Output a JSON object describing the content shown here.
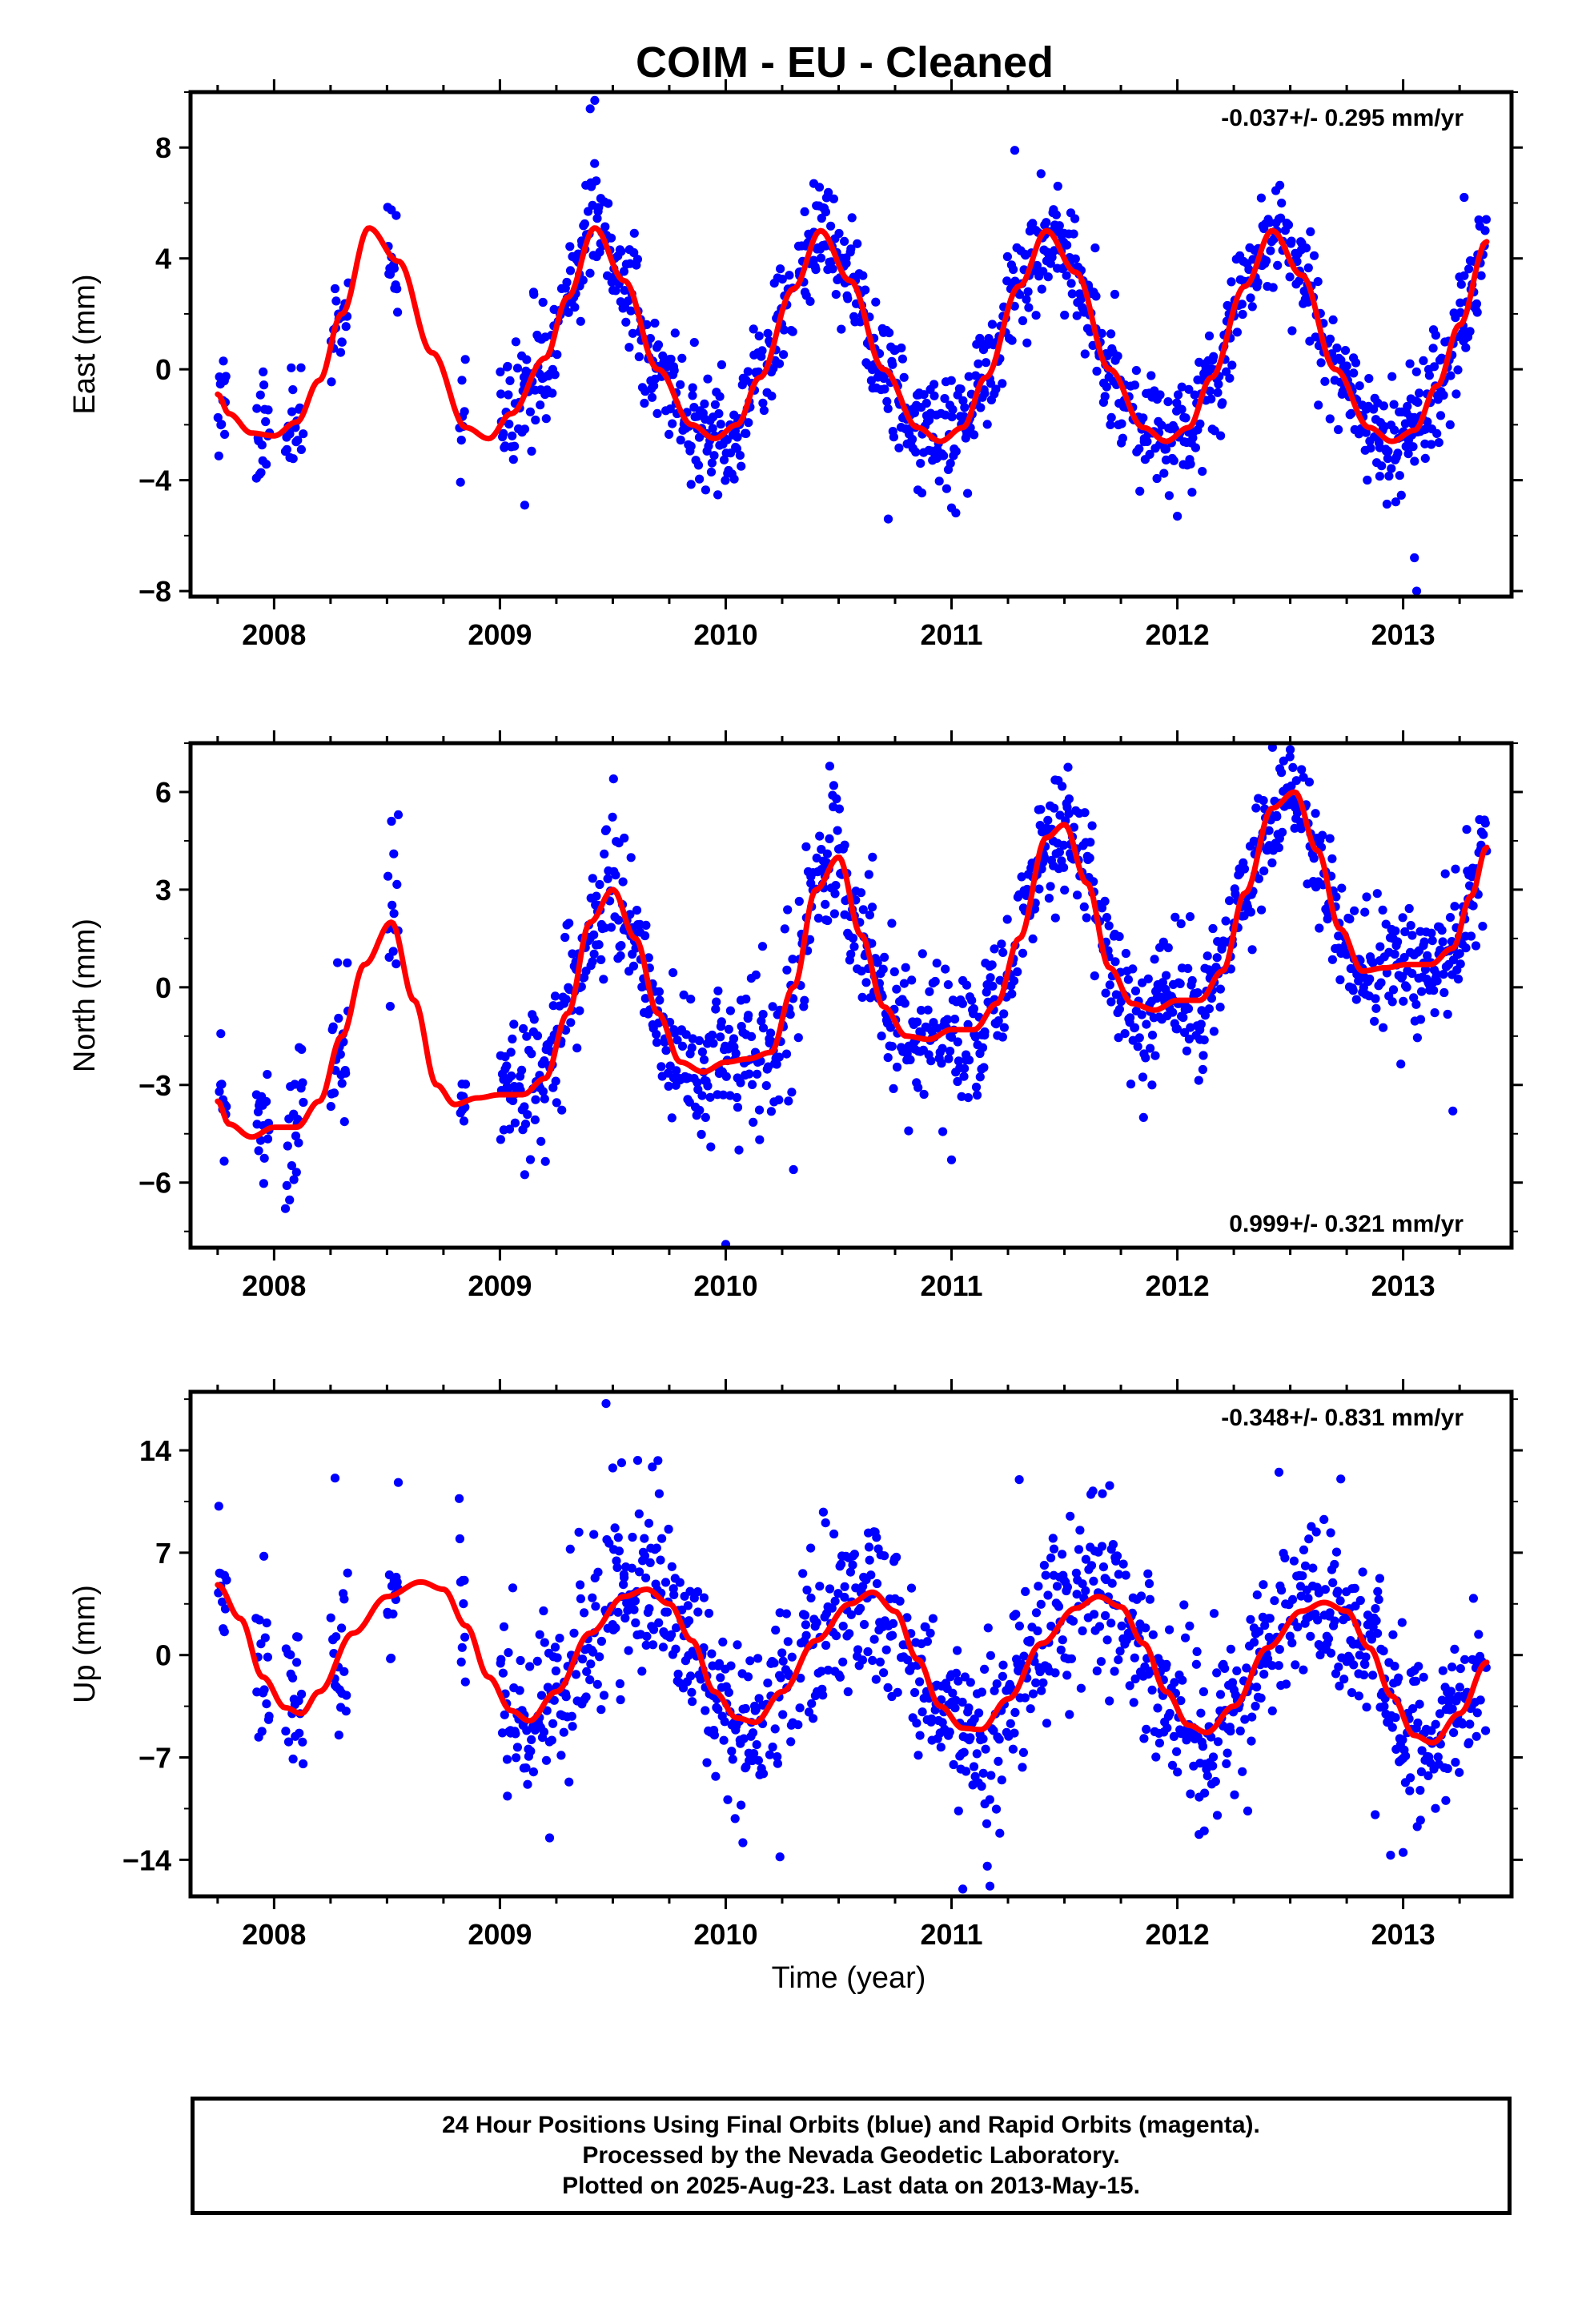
{
  "title": "COIM  - EU - Cleaned",
  "xlabel": "Time (year)",
  "footer": {
    "line1": "24 Hour Positions Using Final Orbits (blue) and Rapid Orbits (magenta).",
    "line2": "Processed by the Nevada Geodetic Laboratory.",
    "line3": "Plotted on 2025-Aug-23. Last data on 2013-May-15."
  },
  "colors": {
    "points": "#0000ff",
    "model": "#ff0000",
    "axes": "#000000"
  },
  "chart_data": [
    {
      "type": "scatter",
      "name": "east",
      "ylabel": "East (mm)",
      "rate": "-0.037+/- 0.295 mm/yr",
      "rate_position": "top-right",
      "xlim": [
        2007.63,
        2013.48
      ],
      "ylim": [
        -8.2,
        10.0
      ],
      "xticks": [
        2008,
        2009,
        2010,
        2011,
        2012,
        2013
      ],
      "xtick_labels": [
        "2008",
        "2009",
        "2010",
        "2011",
        "2012",
        "2013"
      ],
      "yticks": [
        -8,
        -4,
        0,
        4,
        8
      ],
      "ytick_labels": [
        "−8",
        "−4",
        "0",
        "4",
        "8"
      ],
      "grid": false,
      "model": {
        "knots": [
          [
            2007.75,
            -0.9
          ],
          [
            2007.8,
            -1.6
          ],
          [
            2007.9,
            -2.3
          ],
          [
            2008.0,
            -2.4
          ],
          [
            2008.1,
            -1.9
          ],
          [
            2008.2,
            -0.4
          ],
          [
            2008.3,
            2.0
          ],
          [
            2008.42,
            5.1
          ],
          [
            2008.55,
            3.9
          ],
          [
            2008.7,
            0.6
          ],
          [
            2008.85,
            -2.1
          ],
          [
            2008.95,
            -2.5
          ],
          [
            2009.05,
            -1.6
          ],
          [
            2009.2,
            0.4
          ],
          [
            2009.3,
            2.6
          ],
          [
            2009.42,
            5.1
          ],
          [
            2009.55,
            3.2
          ],
          [
            2009.7,
            0.0
          ],
          [
            2009.85,
            -2.0
          ],
          [
            2009.95,
            -2.5
          ],
          [
            2010.05,
            -2.0
          ],
          [
            2010.15,
            -0.3
          ],
          [
            2010.3,
            2.9
          ],
          [
            2010.42,
            5.0
          ],
          [
            2010.55,
            3.2
          ],
          [
            2010.7,
            0.0
          ],
          [
            2010.85,
            -2.1
          ],
          [
            2010.95,
            -2.6
          ],
          [
            2011.05,
            -2.1
          ],
          [
            2011.15,
            -0.3
          ],
          [
            2011.3,
            3.0
          ],
          [
            2011.42,
            5.0
          ],
          [
            2011.55,
            3.5
          ],
          [
            2011.7,
            0.0
          ],
          [
            2011.85,
            -2.1
          ],
          [
            2011.95,
            -2.6
          ],
          [
            2012.05,
            -2.1
          ],
          [
            2012.15,
            -0.3
          ],
          [
            2012.3,
            3.0
          ],
          [
            2012.42,
            5.0
          ],
          [
            2012.55,
            3.4
          ],
          [
            2012.7,
            0.0
          ],
          [
            2012.85,
            -2.1
          ],
          [
            2012.95,
            -2.6
          ],
          [
            2013.05,
            -2.2
          ],
          [
            2013.15,
            -0.6
          ],
          [
            2013.25,
            1.6
          ],
          [
            2013.37,
            4.6
          ]
        ]
      },
      "points": {
        "seed": 11,
        "ranges": [
          [
            2007.75,
            2007.79
          ],
          [
            2007.92,
            2007.98
          ],
          [
            2008.05,
            2008.13
          ],
          [
            2008.25,
            2008.33
          ],
          [
            2008.5,
            2008.55
          ],
          [
            2008.82,
            2008.85
          ],
          [
            2009.0,
            2010.17
          ],
          [
            2010.18,
            2010.3
          ],
          [
            2010.32,
            2013.37
          ]
        ],
        "per_year": 300,
        "sigma": 1.0,
        "outliers": [
          [
            2009.42,
            9.7
          ],
          [
            2009.4,
            9.4
          ],
          [
            2013.05,
            -6.8
          ],
          [
            2013.06,
            -8.0
          ],
          [
            2009.11,
            -4.9
          ],
          [
            2010.72,
            -5.4
          ],
          [
            2011.0,
            -5.0
          ],
          [
            2013.27,
            6.2
          ],
          [
            2010.39,
            6.7
          ],
          [
            2011.28,
            7.9
          ],
          [
            2012.0,
            -5.3
          ]
        ]
      }
    },
    {
      "type": "scatter",
      "name": "north",
      "ylabel": "North (mm)",
      "rate": "0.999+/- 0.321 mm/yr",
      "rate_position": "bottom-right",
      "xlim": [
        2007.63,
        2013.48
      ],
      "ylim": [
        -8.0,
        7.5
      ],
      "xticks": [
        2008,
        2009,
        2010,
        2011,
        2012,
        2013
      ],
      "xtick_labels": [
        "2008",
        "2009",
        "2010",
        "2011",
        "2012",
        "2013"
      ],
      "yticks": [
        -6,
        -3,
        0,
        3,
        6
      ],
      "ytick_labels": [
        "−6",
        "−3",
        "0",
        "3",
        "6"
      ],
      "grid": false,
      "model": {
        "knots": [
          [
            2007.75,
            -3.5
          ],
          [
            2007.8,
            -4.2
          ],
          [
            2007.9,
            -4.6
          ],
          [
            2008.0,
            -4.3
          ],
          [
            2008.1,
            -4.3
          ],
          [
            2008.2,
            -3.5
          ],
          [
            2008.3,
            -1.5
          ],
          [
            2008.4,
            0.7
          ],
          [
            2008.52,
            2.0
          ],
          [
            2008.62,
            -0.4
          ],
          [
            2008.72,
            -3.0
          ],
          [
            2008.8,
            -3.6
          ],
          [
            2008.9,
            -3.4
          ],
          [
            2009.0,
            -3.3
          ],
          [
            2009.1,
            -3.3
          ],
          [
            2009.2,
            -2.8
          ],
          [
            2009.3,
            -0.8
          ],
          [
            2009.4,
            2.0
          ],
          [
            2009.5,
            3.0
          ],
          [
            2009.6,
            1.5
          ],
          [
            2009.7,
            -0.8
          ],
          [
            2009.8,
            -2.3
          ],
          [
            2009.9,
            -2.6
          ],
          [
            2010.0,
            -2.3
          ],
          [
            2010.1,
            -2.2
          ],
          [
            2010.2,
            -2.0
          ],
          [
            2010.3,
            0.0
          ],
          [
            2010.4,
            3.0
          ],
          [
            2010.5,
            4.0
          ],
          [
            2010.6,
            1.6
          ],
          [
            2010.7,
            -0.6
          ],
          [
            2010.8,
            -1.5
          ],
          [
            2010.9,
            -1.6
          ],
          [
            2011.0,
            -1.3
          ],
          [
            2011.1,
            -1.3
          ],
          [
            2011.2,
            -0.5
          ],
          [
            2011.3,
            1.5
          ],
          [
            2011.42,
            4.6
          ],
          [
            2011.5,
            5.0
          ],
          [
            2011.6,
            3.2
          ],
          [
            2011.7,
            0.6
          ],
          [
            2011.8,
            -0.5
          ],
          [
            2011.9,
            -0.7
          ],
          [
            2012.0,
            -0.4
          ],
          [
            2012.1,
            -0.4
          ],
          [
            2012.2,
            0.5
          ],
          [
            2012.3,
            2.9
          ],
          [
            2012.42,
            5.5
          ],
          [
            2012.52,
            6.0
          ],
          [
            2012.62,
            4.2
          ],
          [
            2012.72,
            1.8
          ],
          [
            2012.82,
            0.5
          ],
          [
            2012.92,
            0.6
          ],
          [
            2013.02,
            0.7
          ],
          [
            2013.12,
            0.7
          ],
          [
            2013.22,
            1.2
          ],
          [
            2013.3,
            2.8
          ],
          [
            2013.37,
            4.3
          ]
        ]
      },
      "points": {
        "seed": 23,
        "ranges": [
          [
            2007.75,
            2007.79
          ],
          [
            2007.92,
            2007.98
          ],
          [
            2008.05,
            2008.13
          ],
          [
            2008.25,
            2008.33
          ],
          [
            2008.5,
            2008.55
          ],
          [
            2008.82,
            2008.85
          ],
          [
            2009.0,
            2010.17
          ],
          [
            2010.18,
            2010.3
          ],
          [
            2010.32,
            2013.37
          ]
        ],
        "per_year": 300,
        "sigma": 1.0,
        "outliers": [
          [
            2008.52,
            5.1
          ],
          [
            2008.55,
            5.3
          ],
          [
            2008.53,
            4.1
          ],
          [
            2008.05,
            -6.8
          ],
          [
            2010.0,
            -7.9
          ],
          [
            2010.3,
            -5.6
          ],
          [
            2011.0,
            -5.3
          ],
          [
            2011.85,
            -4.0
          ],
          [
            2012.5,
            7.3
          ],
          [
            2013.22,
            -3.8
          ],
          [
            2010.45,
            4.1
          ],
          [
            2010.65,
            4.0
          ]
        ]
      }
    },
    {
      "type": "scatter",
      "name": "up",
      "ylabel": "Up (mm)",
      "rate": "-0.348+/- 0.831 mm/yr",
      "rate_position": "top-right",
      "xlim": [
        2007.63,
        2013.48
      ],
      "ylim": [
        -16.5,
        18.0
      ],
      "xticks": [
        2008,
        2009,
        2010,
        2011,
        2012,
        2013
      ],
      "xtick_labels": [
        "2008",
        "2009",
        "2010",
        "2011",
        "2012",
        "2013"
      ],
      "yticks": [
        -14,
        -7,
        0,
        7,
        14
      ],
      "ytick_labels": [
        "−14",
        "−7",
        "0",
        "7",
        "14"
      ],
      "grid": false,
      "model": {
        "knots": [
          [
            2007.75,
            4.8
          ],
          [
            2007.85,
            2.5
          ],
          [
            2007.95,
            -1.5
          ],
          [
            2008.05,
            -3.6
          ],
          [
            2008.12,
            -4.0
          ],
          [
            2008.2,
            -2.5
          ],
          [
            2008.35,
            1.5
          ],
          [
            2008.5,
            4.0
          ],
          [
            2008.65,
            5.0
          ],
          [
            2008.75,
            4.5
          ],
          [
            2008.85,
            2.0
          ],
          [
            2008.95,
            -1.5
          ],
          [
            2009.05,
            -3.8
          ],
          [
            2009.13,
            -4.5
          ],
          [
            2009.25,
            -2.5
          ],
          [
            2009.4,
            1.5
          ],
          [
            2009.55,
            4.0
          ],
          [
            2009.65,
            4.5
          ],
          [
            2009.75,
            3.5
          ],
          [
            2009.85,
            1.0
          ],
          [
            2009.95,
            -2.5
          ],
          [
            2010.05,
            -4.3
          ],
          [
            2010.13,
            -4.6
          ],
          [
            2010.25,
            -2.5
          ],
          [
            2010.4,
            1.0
          ],
          [
            2010.55,
            3.5
          ],
          [
            2010.65,
            4.3
          ],
          [
            2010.75,
            3.0
          ],
          [
            2010.85,
            -0.3
          ],
          [
            2010.95,
            -3.5
          ],
          [
            2011.05,
            -5.0
          ],
          [
            2011.13,
            -5.1
          ],
          [
            2011.25,
            -3.0
          ],
          [
            2011.4,
            0.8
          ],
          [
            2011.55,
            3.2
          ],
          [
            2011.65,
            4.0
          ],
          [
            2011.75,
            3.3
          ],
          [
            2011.85,
            0.8
          ],
          [
            2011.95,
            -2.5
          ],
          [
            2012.05,
            -4.8
          ],
          [
            2012.13,
            -5.3
          ],
          [
            2012.25,
            -3.5
          ],
          [
            2012.4,
            0.5
          ],
          [
            2012.55,
            3.0
          ],
          [
            2012.65,
            3.6
          ],
          [
            2012.75,
            3.0
          ],
          [
            2012.85,
            0.5
          ],
          [
            2012.95,
            -2.8
          ],
          [
            2013.05,
            -5.5
          ],
          [
            2013.13,
            -6.0
          ],
          [
            2013.25,
            -4.0
          ],
          [
            2013.37,
            -0.5
          ]
        ]
      },
      "points": {
        "seed": 37,
        "ranges": [
          [
            2007.75,
            2007.79
          ],
          [
            2007.92,
            2007.98
          ],
          [
            2008.05,
            2008.13
          ],
          [
            2008.25,
            2008.33
          ],
          [
            2008.5,
            2008.55
          ],
          [
            2008.82,
            2008.85
          ],
          [
            2009.0,
            2010.17
          ],
          [
            2010.18,
            2010.3
          ],
          [
            2010.32,
            2013.37
          ]
        ],
        "per_year": 300,
        "sigma": 3.0,
        "outliers": [
          [
            2009.47,
            17.2
          ],
          [
            2009.5,
            12.8
          ],
          [
            2009.7,
            13.3
          ],
          [
            2008.27,
            12.1
          ],
          [
            2008.55,
            11.8
          ],
          [
            2008.82,
            10.7
          ],
          [
            2011.05,
            -16.0
          ],
          [
            2011.17,
            -15.8
          ],
          [
            2010.24,
            -13.8
          ],
          [
            2013.0,
            -13.5
          ],
          [
            2009.22,
            -12.5
          ],
          [
            2011.3,
            12.0
          ],
          [
            2012.45,
            12.5
          ],
          [
            2008.1,
            -0.5
          ]
        ]
      }
    }
  ]
}
